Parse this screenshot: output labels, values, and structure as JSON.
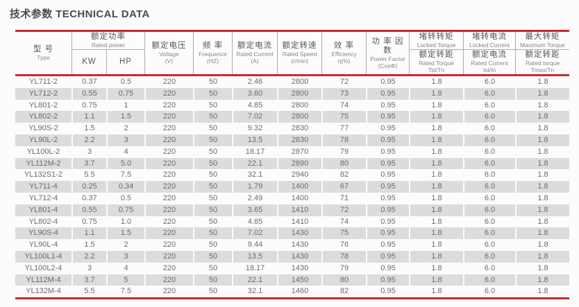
{
  "page": {
    "title": "技术参数 TECHNICAL DATA"
  },
  "colors": {
    "accent_red": "#c32a2e",
    "row_alt_gray": "#dcdcdc",
    "header_line_gray": "#ababab",
    "text_gray": "#6b6b6b"
  },
  "table": {
    "column_ids": [
      "type",
      "kw",
      "hp",
      "voltage",
      "frequency",
      "rated_current",
      "rated_speed",
      "efficiency",
      "power_factor",
      "locked_torque_ratio",
      "locked_current_ratio",
      "max_torque_ratio"
    ],
    "header": {
      "type": {
        "zh": "型 号",
        "en": "Type"
      },
      "rated_power": {
        "zh": "额定功率",
        "en": "Rated power",
        "kw": "KW",
        "hp": "HP"
      },
      "voltage": {
        "zh": "额定电压",
        "en": "Voltage",
        "unit": "(V)"
      },
      "frequency": {
        "zh": "频 率",
        "en": "Frequence",
        "unit": "(HZ)"
      },
      "rated_current": {
        "zh": "额定电流",
        "en": "Rated Current",
        "unit": "(A)"
      },
      "rated_speed": {
        "zh": "额定转速",
        "en": "Rated Speed",
        "unit": "(r/min)"
      },
      "efficiency": {
        "zh": "效 率",
        "en": "Efficiency",
        "unit": "η(%)"
      },
      "power_factor": {
        "zh": "功 率 因 数",
        "en": "Power Factor",
        "unit": "(CosΦ)"
      },
      "locked_torque": {
        "zh": "堵转转矩",
        "en": "Locked Torque",
        "sub_zh": "额定转距",
        "sub_en": "Rated Torque",
        "sub_sym": "Tst/Tn"
      },
      "locked_current": {
        "zh": "堵转电流",
        "en": "Locked  Current",
        "sub_zh": "额定电流",
        "sub_en": "Rated Current",
        "sub_sym": "Ist/In"
      },
      "max_torque": {
        "zh": "最大转矩",
        "en": "Maximum Torque",
        "sub_zh": "额定转距",
        "sub_en": "Rated torque",
        "sub_sym": "Tmax/Tn"
      }
    },
    "rows": [
      [
        "YL711-2",
        "0.37",
        "0.5",
        "220",
        "50",
        "2.46",
        "2800",
        "72",
        "0.95",
        "1.8",
        "6.0",
        "1.8"
      ],
      [
        "YL712-2",
        "0.55",
        "0.75",
        "220",
        "50",
        "3.60",
        "2800",
        "73",
        "0.95",
        "1.8",
        "6.0",
        "1.8"
      ],
      [
        "YL801-2",
        "0.75",
        "1",
        "220",
        "50",
        "4.85",
        "2800",
        "74",
        "0.95",
        "1.8",
        "6.0",
        "1.8"
      ],
      [
        "YL802-2",
        "1.1",
        "1.5",
        "220",
        "50",
        "7.02",
        "2800",
        "75",
        "0.95",
        "1.8",
        "6.0",
        "1.8"
      ],
      [
        "YL90S-2",
        "1.5",
        "2",
        "220",
        "50",
        "9.32",
        "2830",
        "77",
        "0.95",
        "1.8",
        "6.0",
        "1.8"
      ],
      [
        "YL90L-2",
        "2.2",
        "3",
        "220",
        "50",
        "13.5",
        "2830",
        "78",
        "0.95",
        "1.8",
        "6.0",
        "1.8"
      ],
      [
        "YL100L-2",
        "3",
        "4",
        "220",
        "50",
        "18.17",
        "2870",
        "79",
        "0.95",
        "1.8",
        "6.0",
        "1.8"
      ],
      [
        "YL112M-2",
        "3.7",
        "5.0",
        "220",
        "50",
        "22.1",
        "2890",
        "80",
        "0.95",
        "1.8",
        "6.0",
        "1.8"
      ],
      [
        "YL132S1-2",
        "5.5",
        "7.5",
        "220",
        "50",
        "32.1",
        "2940",
        "82",
        "0.95",
        "1.8",
        "6.0",
        "1.8"
      ],
      [
        "YL711-4",
        "0.25",
        "0.34",
        "220",
        "50",
        "1.79",
        "1400",
        "67",
        "0.95",
        "1.8",
        "6.0",
        "1.8"
      ],
      [
        "YL712-4",
        "0.37",
        "0.5",
        "220",
        "50",
        "2.49",
        "1400",
        "71",
        "0.95",
        "1.8",
        "6.0",
        "1.8"
      ],
      [
        "YL801-4",
        "0.55",
        "0.75",
        "220",
        "50",
        "3.65",
        "1410",
        "72",
        "0.95",
        "1.8",
        "6.0",
        "1.8"
      ],
      [
        "YL802-4",
        "0.75",
        "1.0",
        "220",
        "50",
        "4.85",
        "1410",
        "74",
        "0.95",
        "1.8",
        "6.0",
        "1.8"
      ],
      [
        "YL90S-4",
        "1.1",
        "1.5",
        "220",
        "50",
        "7.02",
        "1430",
        "75",
        "0.95",
        "1.8",
        "6.0",
        "1.8"
      ],
      [
        "YL90L-4",
        "1.5",
        "2",
        "220",
        "50",
        "9.44",
        "1430",
        "76",
        "0.95",
        "1.8",
        "6.0",
        "1.8"
      ],
      [
        "YL100L1-4",
        "2.2",
        "3",
        "220",
        "50",
        "13.5",
        "1430",
        "78",
        "0.95",
        "1.8",
        "6.0",
        "1.8"
      ],
      [
        "YL100L2-4",
        "3",
        "4",
        "220",
        "50",
        "18.17",
        "1430",
        "79",
        "0.95",
        "1.8",
        "6.0",
        "1.8"
      ],
      [
        "YL112M-4",
        "3.7",
        "5",
        "220",
        "50",
        "22.1",
        "1450",
        "80",
        "0.95",
        "1.8",
        "6.0",
        "1.8"
      ],
      [
        "YL132M-4",
        "5.5",
        "7.5",
        "220",
        "50",
        "32.1",
        "1460",
        "82",
        "0.95",
        "1.8",
        "6.0",
        "1.8"
      ]
    ]
  }
}
